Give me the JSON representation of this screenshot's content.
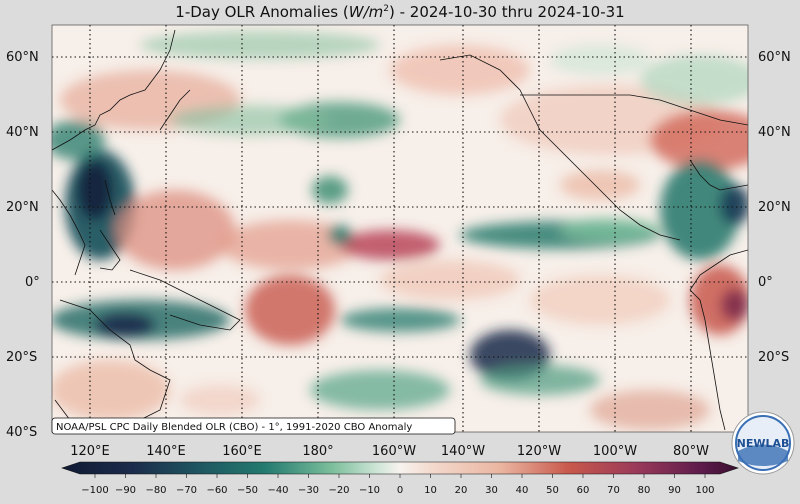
{
  "title": {
    "prefix": "1-Day OLR Anomalies (",
    "unit_base": "W/m",
    "unit_exp": "2",
    "suffix": ") - 2024-10-30 thru 2024-10-31"
  },
  "map": {
    "lat_labels": [
      "60°N",
      "40°N",
      "20°N",
      "0°",
      "20°S",
      "40°S"
    ],
    "lat_values": [
      60,
      40,
      20,
      0,
      -20,
      -40
    ],
    "lon_labels": [
      "120°E",
      "140°E",
      "160°E",
      "180°",
      "160°W",
      "140°W",
      "120°W",
      "100°W",
      "80°W"
    ],
    "lon_values": [
      120,
      140,
      160,
      180,
      200,
      220,
      240,
      260,
      280
    ],
    "lon_range_east": [
      108,
      300
    ],
    "lat_range": [
      -40,
      68
    ],
    "gridlines": "dotted"
  },
  "source_note": "NOAA/PSL CPC Daily Blended OLR (CBO) - 1°, 1991-2020 CBO Anomaly",
  "colorbar": {
    "ticks": [
      "−100",
      "−90",
      "−80",
      "−70",
      "−60",
      "−50",
      "−40",
      "−30",
      "−20",
      "−10",
      "0",
      "10",
      "20",
      "30",
      "40",
      "50",
      "60",
      "70",
      "80",
      "90",
      "100"
    ],
    "range": [
      -100,
      100
    ],
    "colors": {
      "neg_strong": "#1b2a4a",
      "neg_mid": "#237a6f",
      "neg_light": "#7cbf9c",
      "neutral": "#f7f2ee",
      "pos_light": "#eab5a0",
      "pos_mid": "#c8584c",
      "pos_strong": "#5a1a4a"
    }
  },
  "logo": {
    "text": "NEWLAB",
    "icon": "noaa-laboratory-logo"
  }
}
